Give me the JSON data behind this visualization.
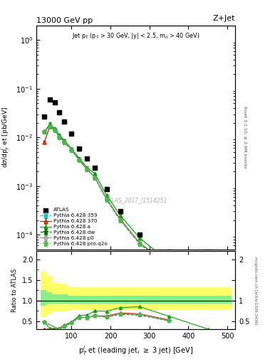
{
  "title_left": "13000 GeV pp",
  "title_right": "Z+Jet",
  "inner_title": "Jet p$_T$ (p$_T$ > 30 GeV, |y| < 2.5, m$_{ll}$ > 40 GeV)",
  "watermark": "ATLAS_2017_I1514251",
  "ylabel_main": "d$\\sigma$/dp$_T^j$ et [pb/GeV]",
  "ylabel_ratio": "Ratio to ATLAS",
  "xlabel": "p$_T^j$ et (leading jet, $\\geq$ 3 jet) [GeV]",
  "right_label1": "Rivet 3.1.10, ≥ 2.9M events",
  "right_label2": "mcplots.cern.ch [arXiv:1306.3436]",
  "atlas_x": [
    30,
    45,
    57,
    69,
    82,
    100,
    120,
    140,
    160,
    190,
    225,
    275,
    350,
    450
  ],
  "atlas_y": [
    0.027,
    0.06,
    0.052,
    0.033,
    0.021,
    0.012,
    0.0058,
    0.0037,
    0.0024,
    0.00088,
    0.0003,
    0.0001,
    4.5e-05,
    4.5e-05
  ],
  "py359_x": [
    30,
    45,
    57,
    69,
    82,
    100,
    120,
    140,
    160,
    190,
    225,
    275,
    350,
    450
  ],
  "py359_y": [
    0.013,
    0.017,
    0.014,
    0.01,
    0.008,
    0.0055,
    0.0034,
    0.0022,
    0.0015,
    0.00053,
    0.0002,
    6.5e-05,
    2.3e-05,
    1.3e-05
  ],
  "py370_x": [
    30,
    45,
    57,
    69,
    82,
    100,
    120,
    140,
    160,
    190,
    225,
    275,
    350,
    450
  ],
  "py370_y": [
    0.008,
    0.017,
    0.015,
    0.011,
    0.0085,
    0.0057,
    0.0035,
    0.0022,
    0.0015,
    0.00055,
    0.00021,
    6.8e-05,
    2.4e-05,
    1.3e-05
  ],
  "pya_x": [
    30,
    45,
    57,
    69,
    82,
    100,
    120,
    140,
    160,
    190,
    225,
    275,
    350,
    450
  ],
  "pya_y": [
    0.013,
    0.019,
    0.015,
    0.011,
    0.0086,
    0.0058,
    0.0037,
    0.0024,
    0.0018,
    0.00065,
    0.00025,
    8.5e-05,
    2.8e-05,
    1.4e-05
  ],
  "pydw_x": [
    30,
    45,
    57,
    69,
    82,
    100,
    120,
    140,
    160,
    190,
    225,
    275,
    350,
    450
  ],
  "pydw_y": [
    0.013,
    0.017,
    0.014,
    0.01,
    0.008,
    0.0055,
    0.0034,
    0.0022,
    0.0015,
    0.00053,
    0.0002,
    6.5e-05,
    2.3e-05,
    1.3e-05
  ],
  "pyp0_x": [
    30,
    45,
    57,
    69,
    82,
    100,
    120,
    140,
    160,
    190,
    225,
    275,
    350,
    450
  ],
  "pyp0_y": [
    0.013,
    0.017,
    0.014,
    0.01,
    0.0081,
    0.0056,
    0.0034,
    0.0022,
    0.0015,
    0.00054,
    0.000205,
    6.7e-05,
    2.3e-05,
    1.3e-05
  ],
  "pyproq2o_x": [
    30,
    45,
    57,
    69,
    82,
    100,
    120,
    140,
    160,
    190,
    225,
    275,
    350,
    450
  ],
  "pyproq2o_y": [
    0.013,
    0.017,
    0.014,
    0.01,
    0.008,
    0.0055,
    0.0034,
    0.0022,
    0.0015,
    0.00053,
    0.0002,
    6.5e-05,
    2.3e-05,
    1.3e-05
  ],
  "band_edges": [
    20,
    35,
    50,
    63,
    75,
    90,
    110,
    130,
    150,
    170,
    210,
    250,
    305,
    400,
    510
  ],
  "green_lo": [
    0.88,
    0.92,
    0.92,
    0.92,
    0.92,
    0.92,
    0.92,
    0.92,
    0.92,
    0.92,
    0.92,
    0.92,
    0.92,
    0.92
  ],
  "green_hi": [
    1.25,
    1.2,
    1.15,
    1.15,
    1.15,
    1.12,
    1.12,
    1.12,
    1.12,
    1.12,
    1.12,
    1.12,
    1.12,
    1.12
  ],
  "yellow_lo": [
    0.6,
    0.68,
    0.73,
    0.74,
    0.75,
    0.77,
    0.78,
    0.78,
    0.78,
    0.78,
    0.78,
    0.78,
    0.78,
    0.78
  ],
  "yellow_hi": [
    1.7,
    1.6,
    1.45,
    1.42,
    1.4,
    1.35,
    1.32,
    1.32,
    1.32,
    1.32,
    1.32,
    1.32,
    1.32,
    1.32
  ],
  "ratio_x": [
    30,
    45,
    57,
    69,
    82,
    100,
    120,
    140,
    160,
    190,
    225,
    275,
    350,
    450
  ],
  "ratio_359": [
    0.48,
    0.28,
    0.27,
    0.3,
    0.38,
    0.46,
    0.59,
    0.59,
    0.63,
    0.6,
    0.67,
    0.65,
    0.51,
    0.29
  ],
  "ratio_370": [
    0.3,
    0.28,
    0.29,
    0.33,
    0.4,
    0.48,
    0.6,
    0.59,
    0.63,
    0.63,
    0.7,
    0.68,
    0.53,
    0.29
  ],
  "ratio_pya": [
    0.48,
    0.32,
    0.29,
    0.33,
    0.41,
    0.48,
    0.64,
    0.65,
    0.75,
    0.74,
    0.83,
    0.85,
    0.62,
    0.31
  ],
  "ratio_dw": [
    0.48,
    0.28,
    0.27,
    0.3,
    0.38,
    0.46,
    0.59,
    0.59,
    0.63,
    0.6,
    0.67,
    0.65,
    0.51,
    0.29
  ],
  "ratio_p0": [
    0.48,
    0.28,
    0.27,
    0.3,
    0.39,
    0.47,
    0.59,
    0.59,
    0.63,
    0.61,
    0.68,
    0.67,
    0.51,
    0.29
  ],
  "ratio_proq2o": [
    0.48,
    0.28,
    0.27,
    0.3,
    0.38,
    0.46,
    0.59,
    0.59,
    0.63,
    0.6,
    0.67,
    0.65,
    0.51,
    0.29
  ],
  "color_359": "#00CCCC",
  "color_370": "#CC2200",
  "color_a": "#00AA00",
  "color_dw": "#006600",
  "color_p0": "#999999",
  "color_proq2o": "#44BB44",
  "ylim_main": [
    5e-05,
    2.0
  ],
  "ylim_ratio": [
    0.3,
    2.2
  ],
  "xlim": [
    10,
    520
  ]
}
